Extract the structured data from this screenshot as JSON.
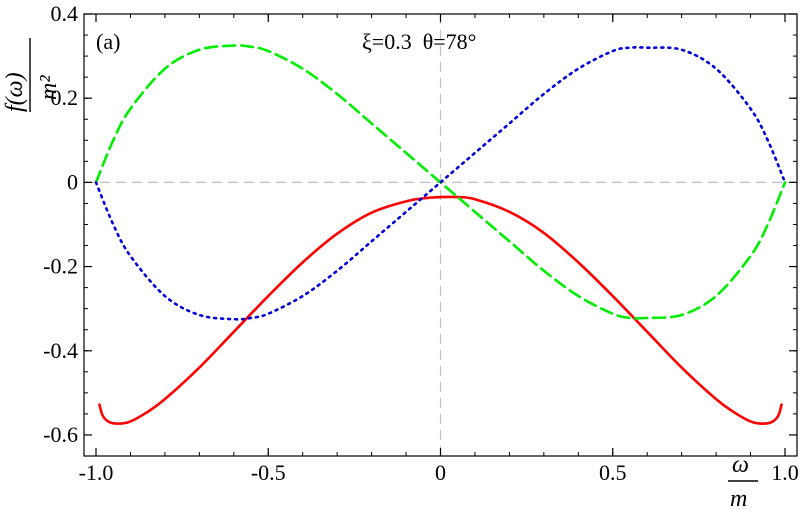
{
  "chart_data": {
    "type": "line",
    "panel_label": "(a)",
    "annotation": "ξ=0.3  θ=78°",
    "ylabel": {
      "numerator": "f(ω)",
      "denominator": "m²"
    },
    "xlabel": {
      "numerator": "ω",
      "denominator": "m"
    },
    "xlim": [
      -1.0,
      1.0
    ],
    "ylim": [
      -0.65,
      0.4
    ],
    "xticks": [
      -1.0,
      -0.5,
      0,
      0.5,
      1.0
    ],
    "xtick_labels": [
      "-1.0",
      "-0.5",
      "0",
      "0.5",
      "1.0"
    ],
    "yticks": [
      -0.6,
      -0.4,
      -0.2,
      0,
      0.2,
      0.4
    ],
    "ytick_labels": [
      "-0.6",
      "-0.4",
      "-0.2",
      "0",
      "0.2",
      "0.4"
    ],
    "reference_lines": {
      "horizontal_y": 0,
      "vertical_x": 0,
      "color": "#c0c0c0"
    },
    "series": [
      {
        "color": "#ff0000",
        "style": "solid",
        "x": [
          -0.99,
          -0.98,
          -0.96,
          -0.93,
          -0.9,
          -0.85,
          -0.8,
          -0.7,
          -0.6,
          -0.5,
          -0.4,
          -0.3,
          -0.2,
          -0.1,
          -0.05,
          0,
          0.05,
          0.1,
          0.2,
          0.3,
          0.4,
          0.5,
          0.6,
          0.7,
          0.8,
          0.85,
          0.9,
          0.93,
          0.96,
          0.98,
          0.99
        ],
        "y": [
          -0.528,
          -0.555,
          -0.57,
          -0.573,
          -0.568,
          -0.545,
          -0.515,
          -0.44,
          -0.355,
          -0.27,
          -0.19,
          -0.122,
          -0.072,
          -0.045,
          -0.038,
          -0.035,
          -0.035,
          -0.04,
          -0.07,
          -0.12,
          -0.19,
          -0.27,
          -0.355,
          -0.44,
          -0.515,
          -0.545,
          -0.568,
          -0.573,
          -0.57,
          -0.555,
          -0.528
        ]
      },
      {
        "color": "#00ee00",
        "style": "dashed",
        "x": [
          -1.0,
          -0.95,
          -0.9,
          -0.8,
          -0.7,
          -0.6,
          -0.55,
          -0.5,
          -0.4,
          -0.3,
          -0.2,
          -0.1,
          0,
          0.1,
          0.2,
          0.3,
          0.4,
          0.5,
          0.55,
          0.6,
          0.7,
          0.8,
          0.9,
          0.95,
          1.0
        ],
        "y": [
          0.0,
          0.1,
          0.175,
          0.27,
          0.315,
          0.325,
          0.322,
          0.312,
          0.27,
          0.21,
          0.14,
          0.07,
          0.0,
          -0.07,
          -0.14,
          -0.21,
          -0.27,
          -0.312,
          -0.322,
          -0.322,
          -0.315,
          -0.27,
          -0.175,
          -0.1,
          0.0
        ]
      },
      {
        "color": "#0000dd",
        "style": "dotted",
        "x": [
          -1.0,
          -0.95,
          -0.9,
          -0.8,
          -0.7,
          -0.6,
          -0.55,
          -0.5,
          -0.4,
          -0.3,
          -0.2,
          -0.1,
          0,
          0.1,
          0.2,
          0.3,
          0.4,
          0.5,
          0.55,
          0.6,
          0.7,
          0.8,
          0.9,
          0.95,
          1.0
        ],
        "y": [
          0.0,
          -0.1,
          -0.175,
          -0.27,
          -0.315,
          -0.325,
          -0.322,
          -0.312,
          -0.27,
          -0.21,
          -0.14,
          -0.07,
          0.0,
          0.07,
          0.14,
          0.21,
          0.27,
          0.312,
          0.32,
          0.32,
          0.315,
          0.27,
          0.175,
          0.1,
          0.0
        ]
      }
    ]
  }
}
